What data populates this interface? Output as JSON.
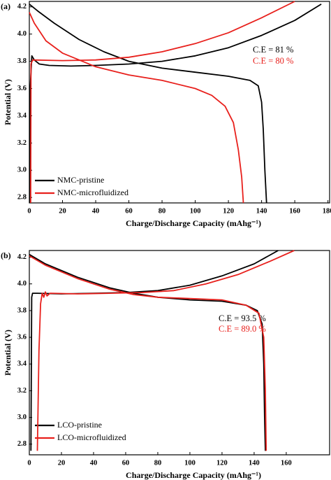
{
  "chart_data": [
    {
      "type": "line",
      "panel": "(a)",
      "xlabel": "Charge/Discharge Capacity (mAhg⁻¹)",
      "ylabel": "Potential (V)",
      "xlim": [
        0,
        181
      ],
      "ylim": [
        2.76,
        4.24
      ],
      "xticks": [
        0,
        20,
        40,
        60,
        80,
        100,
        120,
        140,
        160,
        180
      ],
      "yticks": [
        2.8,
        {
          "value": 3,
          "label": "3.0"
        },
        3.2,
        3.4,
        3.6,
        3.8,
        {
          "value": 4,
          "label": "4.0"
        },
        4.2
      ],
      "legend": "lower left",
      "annotations": [
        {
          "text": "C.E = 81 %",
          "color": "#000000"
        },
        {
          "text": "C.E = 80 %",
          "color": "#e8201c"
        }
      ],
      "series": [
        {
          "name": "NMC-pristine",
          "color": "#000000",
          "x": [
            0.3,
            0.5,
            1.5,
            3,
            6,
            12,
            25,
            40,
            60,
            80,
            100,
            120,
            140,
            160,
            176,
            null,
            0,
            5,
            15,
            30,
            45,
            60,
            80,
            100,
            120,
            133,
            138,
            140,
            141,
            142,
            143
          ],
          "values": [
            2.76,
            3.6,
            3.84,
            3.81,
            3.78,
            3.77,
            3.765,
            3.77,
            3.78,
            3.8,
            3.84,
            3.9,
            3.99,
            4.1,
            4.22,
            null,
            4.22,
            4.17,
            4.08,
            3.96,
            3.87,
            3.8,
            3.75,
            3.72,
            3.69,
            3.66,
            3.62,
            3.5,
            3.3,
            3.0,
            2.76
          ]
        },
        {
          "name": "NMC-microfluidized",
          "color": "#e8201c",
          "x": [
            0.8,
            1,
            2,
            20,
            40,
            60,
            80,
            100,
            120,
            140,
            160,
            null,
            0,
            3,
            10,
            20,
            40,
            60,
            80,
            100,
            110,
            118,
            123,
            126,
            128,
            129
          ],
          "values": [
            2.76,
            3.78,
            3.81,
            3.805,
            3.81,
            3.83,
            3.87,
            3.93,
            4.01,
            4.12,
            4.24,
            null,
            4.16,
            4.08,
            3.95,
            3.86,
            3.76,
            3.7,
            3.66,
            3.6,
            3.55,
            3.47,
            3.35,
            3.15,
            2.95,
            2.76
          ]
        }
      ]
    },
    {
      "type": "line",
      "panel": "(b)",
      "xlabel": "Charge/Discharge Capacity (mAhg⁻¹)",
      "ylabel": "Potential (V)",
      "xlim": [
        0,
        187
      ],
      "ylim": [
        2.72,
        4.25
      ],
      "xticks": [
        0,
        20,
        40,
        60,
        80,
        100,
        120,
        140,
        160
      ],
      "yticks": [
        2.8,
        {
          "value": 3,
          "label": "3.0"
        },
        3.2,
        3.4,
        3.6,
        3.8,
        {
          "value": 4,
          "label": "4.0"
        },
        4.2
      ],
      "legend": "lower left",
      "annotations": [
        {
          "text": "C.E = 93.5 %",
          "color": "#000000"
        },
        {
          "text": "C.E = 89.0 %",
          "color": "#e8201c"
        }
      ],
      "series": [
        {
          "name": "LCO-pristine",
          "color": "#000000",
          "x": [
            1,
            1.5,
            2,
            5,
            20,
            40,
            60,
            80,
            100,
            120,
            140,
            155,
            null,
            0,
            10,
            30,
            50,
            65,
            80,
            100,
            120,
            135,
            142,
            145,
            146,
            146.5,
            147
          ],
          "values": [
            2.75,
            3.9,
            3.93,
            3.93,
            3.925,
            3.93,
            3.935,
            3.95,
            3.99,
            4.06,
            4.15,
            4.25,
            null,
            4.22,
            4.15,
            4.05,
            3.97,
            3.93,
            3.9,
            3.88,
            3.87,
            3.84,
            3.8,
            3.7,
            3.4,
            3.0,
            2.75
          ]
        },
        {
          "name": "LCO-microfluidized",
          "color": "#e8201c",
          "x": [
            5,
            6,
            7,
            8,
            9,
            10,
            11,
            13,
            30,
            50,
            70,
            90,
            110,
            130,
            150,
            165,
            null,
            0,
            10,
            30,
            50,
            65,
            80,
            100,
            120,
            135,
            143,
            146,
            147,
            147.5
          ],
          "values": [
            2.75,
            3.5,
            3.85,
            3.93,
            3.9,
            3.94,
            3.91,
            3.93,
            3.925,
            3.93,
            3.935,
            3.95,
            4.0,
            4.07,
            4.17,
            4.25,
            null,
            4.21,
            4.14,
            4.04,
            3.96,
            3.92,
            3.9,
            3.89,
            3.88,
            3.84,
            3.78,
            3.6,
            3.2,
            2.75
          ]
        }
      ]
    }
  ]
}
